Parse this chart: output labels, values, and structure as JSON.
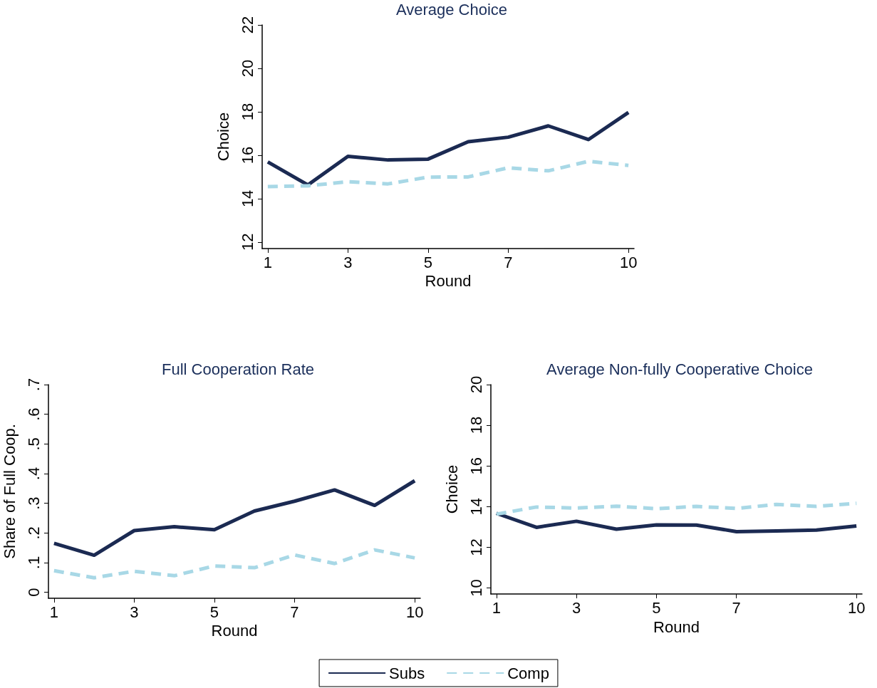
{
  "chart_data": [
    {
      "type": "line",
      "title": "Average Choice",
      "xlabel": "Round",
      "ylabel": "Choice",
      "x": [
        1,
        2,
        3,
        4,
        5,
        6,
        7,
        8,
        9,
        10
      ],
      "series": [
        {
          "color": "#1b2a52",
          "line_style": "solid",
          "values": [
            15.69,
            14.63,
            15.95,
            15.78,
            15.82,
            16.62,
            16.83,
            17.35,
            16.72,
            17.97
          ]
        },
        {
          "color": "#a8d8e6",
          "line_style": "dashed",
          "values": [
            14.55,
            14.59,
            14.78,
            14.68,
            14.99,
            15.0,
            15.42,
            15.28,
            15.72,
            15.53
          ]
        }
      ],
      "xlim": [
        0.86,
        10.14
      ],
      "xticks": [
        1,
        3,
        5,
        7,
        10
      ],
      "ylim": [
        11.7,
        22
      ],
      "yticks": [
        12,
        14,
        16,
        18,
        20,
        22
      ],
      "marker": "none"
    },
    {
      "type": "line",
      "title": "Full Cooperation Rate",
      "xlabel": "Round",
      "ylabel": "Share of Full Coop.",
      "x": [
        1,
        2,
        3,
        4,
        5,
        6,
        7,
        8,
        9,
        10
      ],
      "series": [
        {
          "name": "Subs",
          "color": "#1b2a52",
          "line_style": "solid",
          "values": [
            0.165,
            0.125,
            0.208,
            0.221,
            0.211,
            0.274,
            0.307,
            0.345,
            0.293,
            0.376
          ]
        },
        {
          "name": "Comp",
          "color": "#a8d8e6",
          "line_style": "dashed",
          "values": [
            0.073,
            0.049,
            0.071,
            0.056,
            0.089,
            0.083,
            0.126,
            0.097,
            0.143,
            0.116
          ]
        }
      ],
      "xlim": [
        0.86,
        10.14
      ],
      "xticks": [
        1,
        3,
        5,
        7,
        10
      ],
      "ylim": [
        -0.02,
        0.7
      ],
      "yticks": [
        0,
        {
          "value": 0.1,
          "label": ".1"
        },
        {
          "value": 0.2,
          "label": ".2"
        },
        {
          "value": 0.3,
          "label": ".3"
        },
        {
          "value": 0.4,
          "label": ".4"
        },
        {
          "value": 0.5,
          "label": ".5"
        },
        {
          "value": 0.6,
          "label": ".6"
        },
        {
          "value": 0.7,
          "label": ".7"
        }
      ],
      "marker": "none",
      "legend": "bottom"
    },
    {
      "type": "line",
      "title": "Average Non-fully Cooperative Choice",
      "xlabel": "Round",
      "ylabel": "Choice",
      "x": [
        1,
        2,
        3,
        4,
        5,
        6,
        7,
        8,
        9,
        10
      ],
      "series": [
        {
          "color": "#1b2a52",
          "line_style": "solid",
          "values": [
            13.67,
            12.98,
            13.28,
            12.89,
            13.1,
            13.09,
            12.77,
            12.8,
            12.85,
            13.05
          ]
        },
        {
          "color": "#a8d8e6",
          "line_style": "dashed",
          "values": [
            13.63,
            13.98,
            13.93,
            14.02,
            13.9,
            14.01,
            13.91,
            14.11,
            14.01,
            14.16
          ]
        }
      ],
      "xlim": [
        0.86,
        10.14
      ],
      "xticks": [
        1,
        3,
        5,
        7,
        10
      ],
      "ylim": [
        9.7,
        20
      ],
      "yticks": [
        10,
        12,
        14,
        16,
        18,
        20
      ],
      "marker": "none"
    }
  ]
}
